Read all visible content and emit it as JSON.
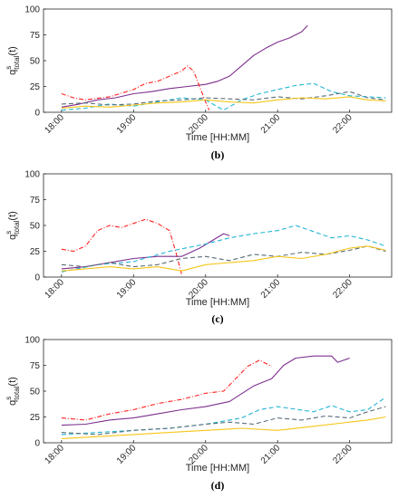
{
  "chart_data": [
    {
      "type": "line",
      "panel_label": "(b)",
      "xlabel": "Time [HH:MM]",
      "ylabel": "q",
      "ylabel_sup": "s",
      "ylabel_sub": "total",
      "ylabel_suffix": "(t)",
      "xlim": [
        "17:45",
        "22:35"
      ],
      "ylim": [
        0,
        100
      ],
      "yticks": [
        0,
        25,
        50,
        75,
        100
      ],
      "xticks": [
        "18:00",
        "19:00",
        "20:00",
        "21:00",
        "22:00"
      ],
      "grid": false,
      "series": [
        {
          "color": "#7E2F8E",
          "dash": "solid",
          "points": [
            [
              "18:00",
              5
            ],
            [
              "18:15",
              8
            ],
            [
              "18:30",
              12
            ],
            [
              "18:45",
              14
            ],
            [
              "19:00",
              18
            ],
            [
              "19:15",
              20
            ],
            [
              "19:30",
              23
            ],
            [
              "19:45",
              25
            ],
            [
              "20:00",
              27
            ],
            [
              "20:10",
              30
            ],
            [
              "20:20",
              35
            ],
            [
              "20:30",
              45
            ],
            [
              "20:40",
              55
            ],
            [
              "20:50",
              62
            ],
            [
              "21:00",
              68
            ],
            [
              "21:10",
              72
            ],
            [
              "21:20",
              78
            ],
            [
              "21:25",
              84
            ]
          ]
        },
        {
          "color": "#FF2020",
          "dash": "dashdot",
          "points": [
            [
              "18:00",
              18
            ],
            [
              "18:10",
              14
            ],
            [
              "18:20",
              12
            ],
            [
              "18:40",
              15
            ],
            [
              "19:00",
              22
            ],
            [
              "19:10",
              28
            ],
            [
              "19:20",
              30
            ],
            [
              "19:30",
              35
            ],
            [
              "19:40",
              40
            ],
            [
              "19:45",
              45
            ],
            [
              "19:50",
              40
            ],
            [
              "19:55",
              25
            ],
            [
              "20:00",
              10
            ],
            [
              "20:03",
              2
            ]
          ]
        },
        {
          "color": "#22B5D4",
          "dash": "dash",
          "points": [
            [
              "18:00",
              2
            ],
            [
              "18:20",
              4
            ],
            [
              "18:40",
              8
            ],
            [
              "19:00",
              6
            ],
            [
              "19:20",
              10
            ],
            [
              "19:40",
              14
            ],
            [
              "20:00",
              12
            ],
            [
              "20:15",
              2
            ],
            [
              "20:30",
              12
            ],
            [
              "20:45",
              18
            ],
            [
              "21:00",
              22
            ],
            [
              "21:15",
              26
            ],
            [
              "21:30",
              28
            ],
            [
              "21:45",
              20
            ],
            [
              "22:00",
              16
            ],
            [
              "22:15",
              15
            ],
            [
              "22:30",
              14
            ]
          ]
        },
        {
          "color": "#5A6E78",
          "dash": "dash",
          "points": [
            [
              "18:00",
              8
            ],
            [
              "18:20",
              9
            ],
            [
              "18:40",
              7
            ],
            [
              "19:00",
              8
            ],
            [
              "19:20",
              11
            ],
            [
              "19:40",
              12
            ],
            [
              "20:00",
              14
            ],
            [
              "20:20",
              13
            ],
            [
              "20:40",
              12
            ],
            [
              "21:00",
              15
            ],
            [
              "21:20",
              13
            ],
            [
              "21:40",
              16
            ],
            [
              "22:00",
              20
            ],
            [
              "22:15",
              14
            ],
            [
              "22:30",
              12
            ]
          ]
        },
        {
          "color": "#F5C518",
          "dash": "solid",
          "points": [
            [
              "18:00",
              4
            ],
            [
              "18:20",
              6
            ],
            [
              "18:40",
              5
            ],
            [
              "19:00",
              7
            ],
            [
              "19:20",
              9
            ],
            [
              "19:40",
              10
            ],
            [
              "20:00",
              12
            ],
            [
              "20:20",
              10
            ],
            [
              "20:40",
              9
            ],
            [
              "21:00",
              12
            ],
            [
              "21:20",
              14
            ],
            [
              "21:40",
              13
            ],
            [
              "22:00",
              15
            ],
            [
              "22:15",
              12
            ],
            [
              "22:30",
              11
            ]
          ]
        }
      ]
    },
    {
      "type": "line",
      "panel_label": "(c)",
      "xlabel": "Time [HH:MM]",
      "ylabel": "q",
      "ylabel_sup": "s",
      "ylabel_sub": "total",
      "ylabel_suffix": "(t)",
      "xlim": [
        "17:45",
        "22:35"
      ],
      "ylim": [
        0,
        100
      ],
      "yticks": [
        0,
        25,
        50,
        75,
        100
      ],
      "xticks": [
        "18:00",
        "19:00",
        "20:00",
        "21:00",
        "22:00"
      ],
      "grid": false,
      "series": [
        {
          "color": "#FF2020",
          "dash": "dashdot",
          "points": [
            [
              "18:00",
              27
            ],
            [
              "18:10",
              25
            ],
            [
              "18:20",
              30
            ],
            [
              "18:30",
              45
            ],
            [
              "18:40",
              50
            ],
            [
              "18:50",
              48
            ],
            [
              "19:00",
              52
            ],
            [
              "19:10",
              56
            ],
            [
              "19:20",
              52
            ],
            [
              "19:30",
              45
            ],
            [
              "19:35",
              25
            ],
            [
              "19:40",
              3
            ]
          ]
        },
        {
          "color": "#7E2F8E",
          "dash": "solid",
          "points": [
            [
              "18:00",
              8
            ],
            [
              "18:20",
              10
            ],
            [
              "18:40",
              14
            ],
            [
              "19:00",
              18
            ],
            [
              "19:20",
              20
            ],
            [
              "19:40",
              20
            ],
            [
              "19:55",
              28
            ],
            [
              "20:05",
              35
            ],
            [
              "20:15",
              42
            ],
            [
              "20:20",
              40
            ]
          ]
        },
        {
          "color": "#22B5D4",
          "dash": "dash",
          "points": [
            [
              "18:00",
              5
            ],
            [
              "18:30",
              12
            ],
            [
              "19:00",
              15
            ],
            [
              "19:30",
              25
            ],
            [
              "20:00",
              32
            ],
            [
              "20:20",
              38
            ],
            [
              "20:40",
              42
            ],
            [
              "21:00",
              45
            ],
            [
              "21:15",
              50
            ],
            [
              "21:30",
              44
            ],
            [
              "21:45",
              38
            ],
            [
              "22:00",
              40
            ],
            [
              "22:15",
              36
            ],
            [
              "22:30",
              30
            ]
          ]
        },
        {
          "color": "#5A6E78",
          "dash": "dash",
          "points": [
            [
              "18:00",
              12
            ],
            [
              "18:20",
              10
            ],
            [
              "18:40",
              14
            ],
            [
              "19:00",
              10
            ],
            [
              "19:20",
              12
            ],
            [
              "19:40",
              18
            ],
            [
              "20:00",
              20
            ],
            [
              "20:20",
              16
            ],
            [
              "20:40",
              22
            ],
            [
              "21:00",
              20
            ],
            [
              "21:20",
              24
            ],
            [
              "21:40",
              22
            ],
            [
              "22:00",
              26
            ],
            [
              "22:15",
              30
            ],
            [
              "22:30",
              25
            ]
          ]
        },
        {
          "color": "#F5C518",
          "dash": "solid",
          "points": [
            [
              "18:00",
              6
            ],
            [
              "18:20",
              8
            ],
            [
              "18:40",
              10
            ],
            [
              "19:00",
              8
            ],
            [
              "19:20",
              10
            ],
            [
              "19:40",
              6
            ],
            [
              "20:00",
              12
            ],
            [
              "20:20",
              14
            ],
            [
              "20:40",
              16
            ],
            [
              "21:00",
              20
            ],
            [
              "21:20",
              18
            ],
            [
              "21:40",
              22
            ],
            [
              "22:00",
              28
            ],
            [
              "22:15",
              30
            ],
            [
              "22:30",
              26
            ]
          ]
        }
      ]
    },
    {
      "type": "line",
      "panel_label": "(d)",
      "xlabel": "Time [HH:MM]",
      "ylabel": "q",
      "ylabel_sup": "s",
      "ylabel_sub": "total",
      "ylabel_suffix": "(t)",
      "xlim": [
        "17:45",
        "22:35"
      ],
      "ylim": [
        0,
        100
      ],
      "yticks": [
        0,
        25,
        50,
        75,
        100
      ],
      "xticks": [
        "18:00",
        "19:00",
        "20:00",
        "21:00",
        "22:00"
      ],
      "grid": false,
      "series": [
        {
          "color": "#FF2020",
          "dash": "dashdot",
          "points": [
            [
              "18:00",
              24
            ],
            [
              "18:20",
              22
            ],
            [
              "18:40",
              28
            ],
            [
              "19:00",
              32
            ],
            [
              "19:20",
              38
            ],
            [
              "19:40",
              42
            ],
            [
              "20:00",
              48
            ],
            [
              "20:15",
              50
            ],
            [
              "20:25",
              62
            ],
            [
              "20:35",
              74
            ],
            [
              "20:45",
              80
            ],
            [
              "20:55",
              74
            ]
          ]
        },
        {
          "color": "#7E2F8E",
          "dash": "solid",
          "points": [
            [
              "18:00",
              17
            ],
            [
              "18:20",
              18
            ],
            [
              "18:40",
              22
            ],
            [
              "19:00",
              24
            ],
            [
              "19:20",
              28
            ],
            [
              "19:40",
              32
            ],
            [
              "20:00",
              35
            ],
            [
              "20:20",
              40
            ],
            [
              "20:40",
              55
            ],
            [
              "20:55",
              62
            ],
            [
              "21:05",
              75
            ],
            [
              "21:15",
              82
            ],
            [
              "21:30",
              84
            ],
            [
              "21:45",
              84
            ],
            [
              "21:50",
              78
            ],
            [
              "22:00",
              82
            ]
          ]
        },
        {
          "color": "#22B5D4",
          "dash": "dash",
          "points": [
            [
              "18:00",
              8
            ],
            [
              "18:30",
              10
            ],
            [
              "19:00",
              12
            ],
            [
              "19:30",
              14
            ],
            [
              "20:00",
              18
            ],
            [
              "20:30",
              24
            ],
            [
              "20:45",
              32
            ],
            [
              "21:00",
              35
            ],
            [
              "21:30",
              30
            ],
            [
              "21:45",
              36
            ],
            [
              "22:00",
              30
            ],
            [
              "22:15",
              32
            ],
            [
              "22:30",
              44
            ]
          ]
        },
        {
          "color": "#5A6E78",
          "dash": "dash",
          "points": [
            [
              "18:00",
              10
            ],
            [
              "18:30",
              8
            ],
            [
              "19:00",
              12
            ],
            [
              "19:30",
              14
            ],
            [
              "20:00",
              18
            ],
            [
              "20:20",
              20
            ],
            [
              "20:40",
              18
            ],
            [
              "21:00",
              24
            ],
            [
              "21:20",
              22
            ],
            [
              "21:40",
              26
            ],
            [
              "22:00",
              24
            ],
            [
              "22:15",
              30
            ],
            [
              "22:30",
              35
            ]
          ]
        },
        {
          "color": "#F5C518",
          "dash": "solid",
          "points": [
            [
              "18:00",
              4
            ],
            [
              "18:30",
              6
            ],
            [
              "19:00",
              8
            ],
            [
              "19:30",
              10
            ],
            [
              "20:00",
              12
            ],
            [
              "20:30",
              14
            ],
            [
              "21:00",
              12
            ],
            [
              "21:30",
              16
            ],
            [
              "22:00",
              20
            ],
            [
              "22:15",
              22
            ],
            [
              "22:30",
              25
            ]
          ]
        }
      ]
    }
  ]
}
